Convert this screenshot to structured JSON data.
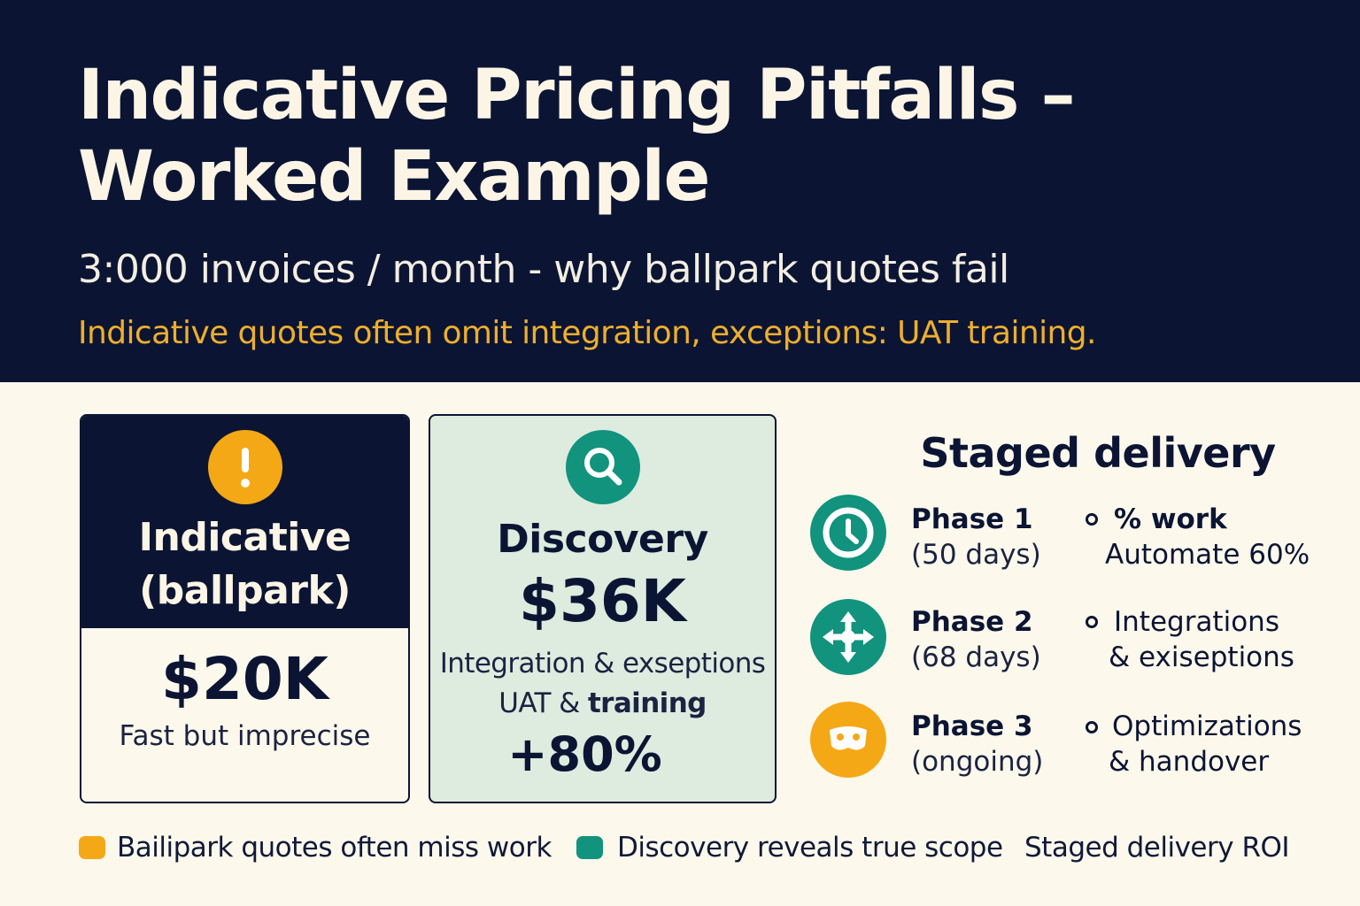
{
  "header": {
    "title_line1": "Indicative Pricing Pitfalls –",
    "title_line2": "Worked Example",
    "subtitle": "3:000 invoices / month - why ballpark quotes fail",
    "note": "Indicative quotes often omit integration, exceptions: UAT training."
  },
  "indicative": {
    "icon": "exclamation-icon",
    "title_line1": "Indicative",
    "title_line2": "(ballpark)",
    "price": "$20K",
    "caption": "Fast but imprecise"
  },
  "discovery": {
    "icon": "magnifier-icon",
    "title": "Discovery",
    "price": "$36K",
    "line1": "Integration & exseptions",
    "line2_a": "UAT & ",
    "line2_b": "training",
    "uplift": "+80%"
  },
  "staged": {
    "title": "Staged delivery",
    "phases": [
      {
        "icon": "clock-icon",
        "name": "Phase 1",
        "duration": "(50 days)",
        "bullet_line1": "% work",
        "bullet_line2": "Automate 60%"
      },
      {
        "icon": "move-arrows-icon",
        "name": "Phase 2",
        "duration": "(68 days)",
        "bullet_line1": "Integrations",
        "bullet_line2": "& exiseptions"
      },
      {
        "icon": "mask-icon",
        "name": "Phase 3",
        "duration": "(ongoing)",
        "bullet_line1": "Optimizations",
        "bullet_line2": "& handover"
      }
    ]
  },
  "legend": {
    "item1": "Bailipark quotes often miss work",
    "item2": "Discovery reveals true scope",
    "item3": "Staged delivery ROI"
  },
  "colors": {
    "navy": "#0b1533",
    "cream": "#fcf8ec",
    "orange": "#f5a815",
    "teal": "#11937e",
    "mint": "#deebdf",
    "gold_text": "#eeae2c"
  }
}
